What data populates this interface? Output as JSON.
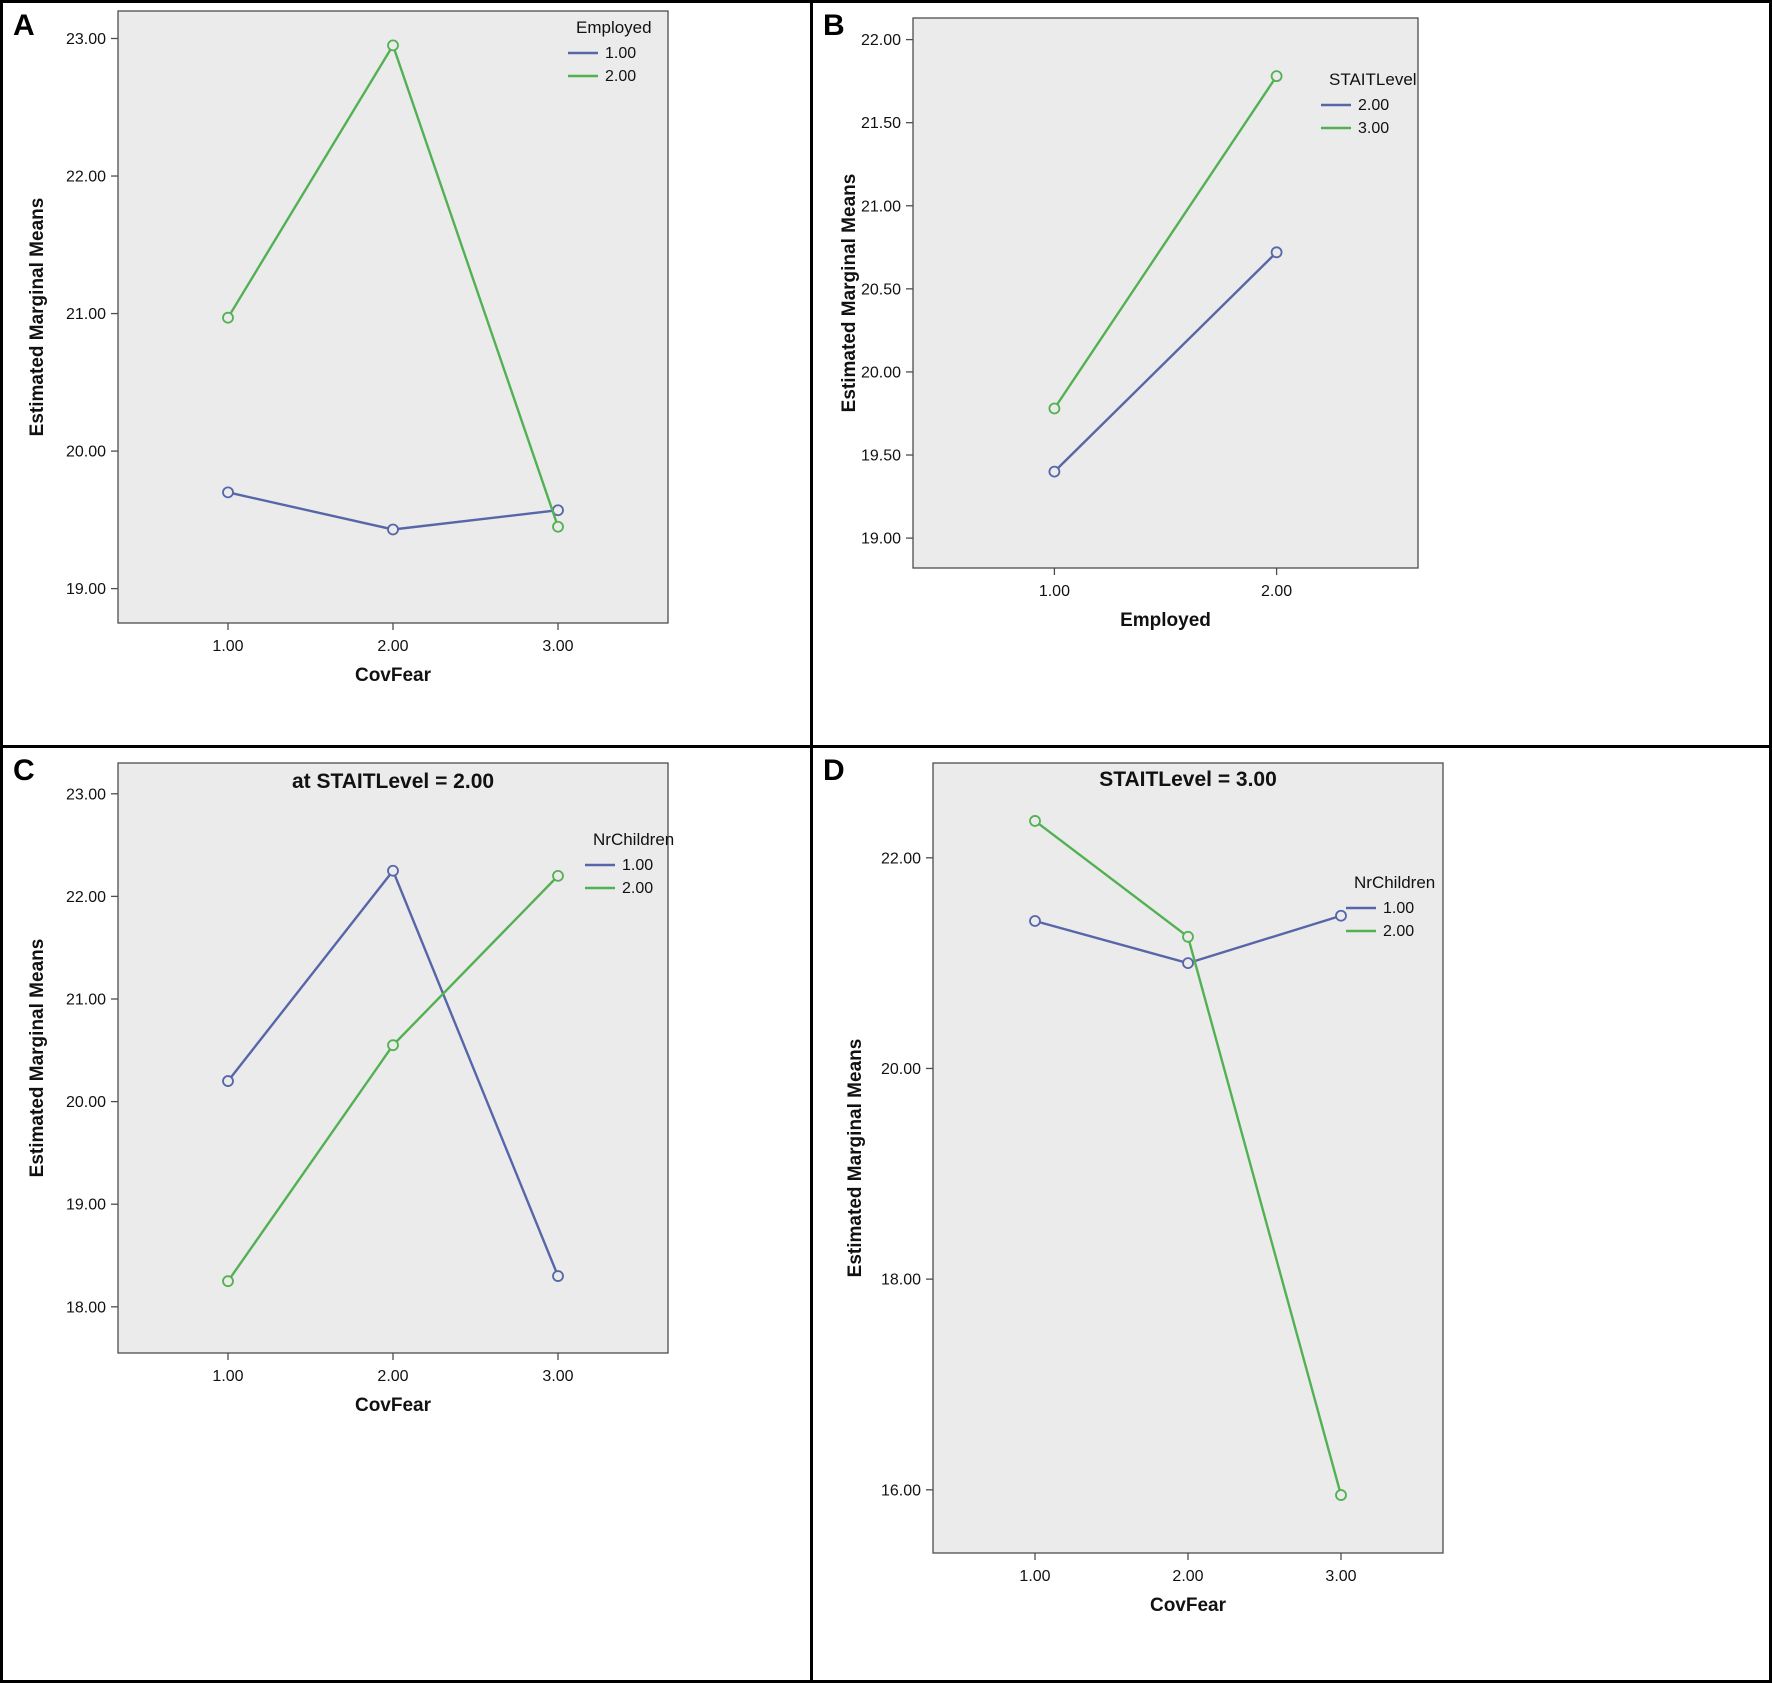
{
  "figure_colors": {
    "plot_background": "#ebebeb",
    "plot_frame": "#4d4d4d",
    "series_blue": "#5666a8",
    "series_green": "#52b152"
  },
  "chart_data": [
    {
      "panel_label": "A",
      "type": "line",
      "title": "",
      "xlabel": "CovFear",
      "ylabel": "Estimated Marginal Means",
      "categories": [
        "1.00",
        "2.00",
        "3.00"
      ],
      "y_ticks": [
        19,
        20,
        21,
        22,
        23
      ],
      "y_tick_labels": [
        "19.00",
        "20.00",
        "21.00",
        "22.00",
        "23.00"
      ],
      "ylim": [
        18.75,
        23.2
      ],
      "grid": false,
      "legend_title": "Employed",
      "legend_position": "top-right",
      "series": [
        {
          "name": "1.00",
          "color": "#5666a8",
          "values": [
            19.7,
            19.43,
            19.57
          ]
        },
        {
          "name": "2.00",
          "color": "#52b152",
          "values": [
            20.97,
            22.95,
            19.45
          ]
        }
      ]
    },
    {
      "panel_label": "B",
      "type": "line",
      "title": "",
      "xlabel": "Employed",
      "ylabel": "Estimated Marginal Means",
      "categories": [
        "1.00",
        "2.00"
      ],
      "y_ticks": [
        19,
        19.5,
        20,
        20.5,
        21,
        21.5,
        22
      ],
      "y_tick_labels": [
        "19.00",
        "19.50",
        "20.00",
        "20.50",
        "21.00",
        "21.50",
        "22.00"
      ],
      "ylim": [
        18.82,
        22.13
      ],
      "grid": false,
      "legend_title": "STAITLevel",
      "legend_position": "top-right",
      "series": [
        {
          "name": "2.00",
          "color": "#5666a8",
          "values": [
            19.4,
            20.72
          ]
        },
        {
          "name": "3.00",
          "color": "#52b152",
          "values": [
            19.78,
            21.78
          ]
        }
      ]
    },
    {
      "panel_label": "C",
      "type": "line",
      "title": "at STAITLevel = 2.00",
      "xlabel": "CovFear",
      "ylabel": "Estimated Marginal Means",
      "categories": [
        "1.00",
        "2.00",
        "3.00"
      ],
      "y_ticks": [
        18,
        19,
        20,
        21,
        22,
        23
      ],
      "y_tick_labels": [
        "18.00",
        "19.00",
        "20.00",
        "21.00",
        "22.00",
        "23.00"
      ],
      "ylim": [
        17.55,
        23.3
      ],
      "grid": false,
      "legend_title": "NrChildren",
      "legend_position": "top-right",
      "series": [
        {
          "name": "1.00",
          "color": "#5666a8",
          "values": [
            20.2,
            22.25,
            18.3
          ]
        },
        {
          "name": "2.00",
          "color": "#52b152",
          "values": [
            18.25,
            20.55,
            22.2
          ]
        }
      ]
    },
    {
      "panel_label": "D",
      "type": "line",
      "title": "STAITLevel = 3.00",
      "xlabel": "CovFear",
      "ylabel": "Estimated Marginal Means",
      "categories": [
        "1.00",
        "2.00",
        "3.00"
      ],
      "y_ticks": [
        16,
        18,
        20,
        22
      ],
      "y_tick_labels": [
        "16.00",
        "18.00",
        "20.00",
        "22.00"
      ],
      "ylim": [
        15.4,
        22.9
      ],
      "grid": false,
      "legend_title": "NrChildren",
      "legend_position": "top-right",
      "series": [
        {
          "name": "1.00",
          "color": "#5666a8",
          "values": [
            21.4,
            21.0,
            21.45
          ]
        },
        {
          "name": "2.00",
          "color": "#52b152",
          "values": [
            22.35,
            21.25,
            15.95
          ]
        }
      ]
    }
  ]
}
